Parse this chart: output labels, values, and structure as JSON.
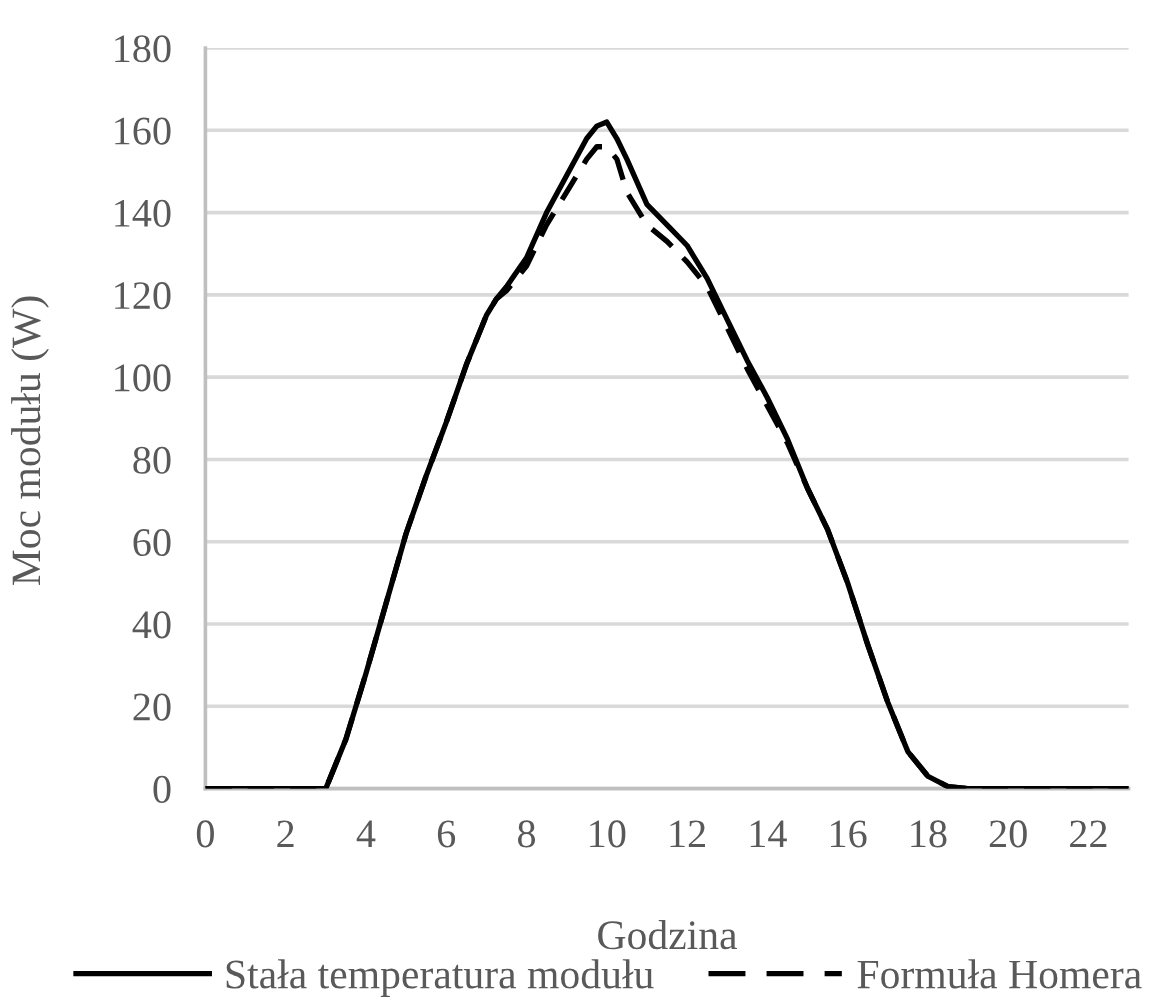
{
  "chart_data": {
    "type": "line",
    "xlabel": "Godzina",
    "ylabel": "Moc modułu (W)",
    "x": [
      0,
      1,
      2,
      2.5,
      3,
      3.5,
      4,
      4.5,
      5,
      5.5,
      6,
      6.5,
      7,
      7.25,
      7.5,
      8,
      8.5,
      9,
      9.5,
      9.75,
      10,
      10.25,
      10.5,
      11,
      11.5,
      12,
      12.5,
      13,
      13.5,
      14,
      14.5,
      15,
      15.5,
      16,
      16.5,
      17,
      17.5,
      18,
      18.5,
      19,
      20,
      21,
      22,
      23
    ],
    "series": [
      {
        "name": "Stała temperatura modułu",
        "color": "#000000",
        "line_style": "solid",
        "values": [
          0,
          0,
          0,
          0,
          0,
          12,
          28,
          45,
          62,
          76,
          89,
          103,
          115,
          119,
          122,
          129,
          140,
          149,
          158,
          161,
          162,
          158,
          153,
          142,
          137,
          132,
          124,
          114,
          104,
          95,
          85,
          73,
          63,
          50,
          35,
          21,
          9,
          3,
          0.5,
          0,
          0,
          0,
          0,
          0
        ]
      },
      {
        "name": "Formuła Homera",
        "color": "#000000",
        "line_style": "dashed",
        "values": [
          0,
          0,
          0,
          0,
          0,
          12,
          28,
          45,
          62,
          76,
          89,
          103,
          115,
          119,
          121,
          127,
          137,
          145,
          153,
          156,
          156,
          153,
          145,
          137,
          133,
          128,
          122,
          112,
          102,
          93,
          84,
          73,
          63,
          50,
          35,
          21,
          9,
          3,
          0.5,
          0,
          0,
          0,
          0,
          0
        ]
      }
    ],
    "xlim": [
      0,
      23
    ],
    "xticks": [
      0,
      2,
      4,
      6,
      8,
      10,
      12,
      14,
      16,
      18,
      20,
      22
    ],
    "ylim": [
      0,
      180
    ],
    "yticks": [
      0,
      20,
      40,
      60,
      80,
      100,
      120,
      140,
      160,
      180
    ],
    "grid": "y",
    "legend": "bottom"
  }
}
